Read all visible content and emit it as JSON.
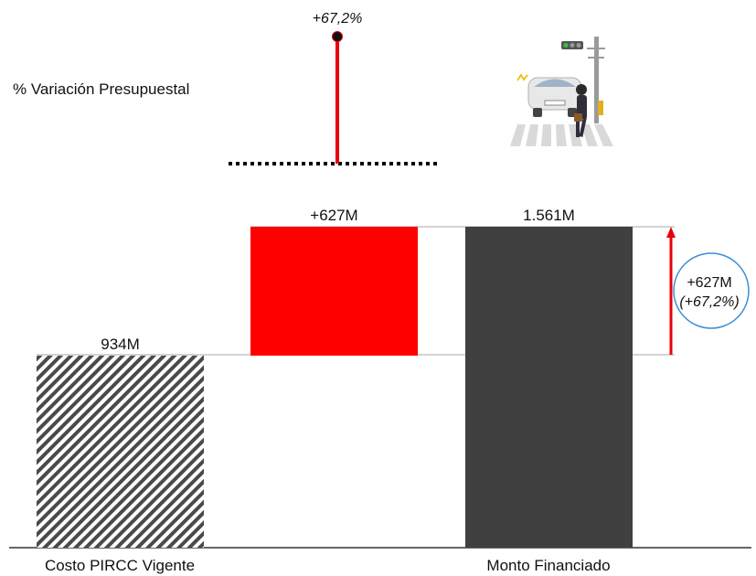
{
  "chart_data": {
    "type": "bar",
    "subtype": "waterfall",
    "categories": [
      "Costo PIRCC Vigente",
      "",
      "Monto Financiado"
    ],
    "bars": [
      {
        "kind": "base",
        "value": 934,
        "label": "934M",
        "pattern": "diagonal-hatch"
      },
      {
        "kind": "increase",
        "value": 627,
        "label": "+627M"
      },
      {
        "kind": "total",
        "value": 1561,
        "label": "1.561M"
      }
    ],
    "unit": "M",
    "difference": {
      "label_value": "+627M",
      "label_pct": "(+67,2%)"
    },
    "variation": {
      "title": "% Variación Presupuestal",
      "value_pct": 67.2,
      "label": "+67,2%"
    },
    "colors": {
      "increase": "#ff0000",
      "total": "#404040",
      "hatch": "#4a4a4a",
      "accent": "#e8000b",
      "badge_border": "#3a8fd6"
    },
    "illustration_icon": "car-pedestrian-crossing-icon"
  }
}
